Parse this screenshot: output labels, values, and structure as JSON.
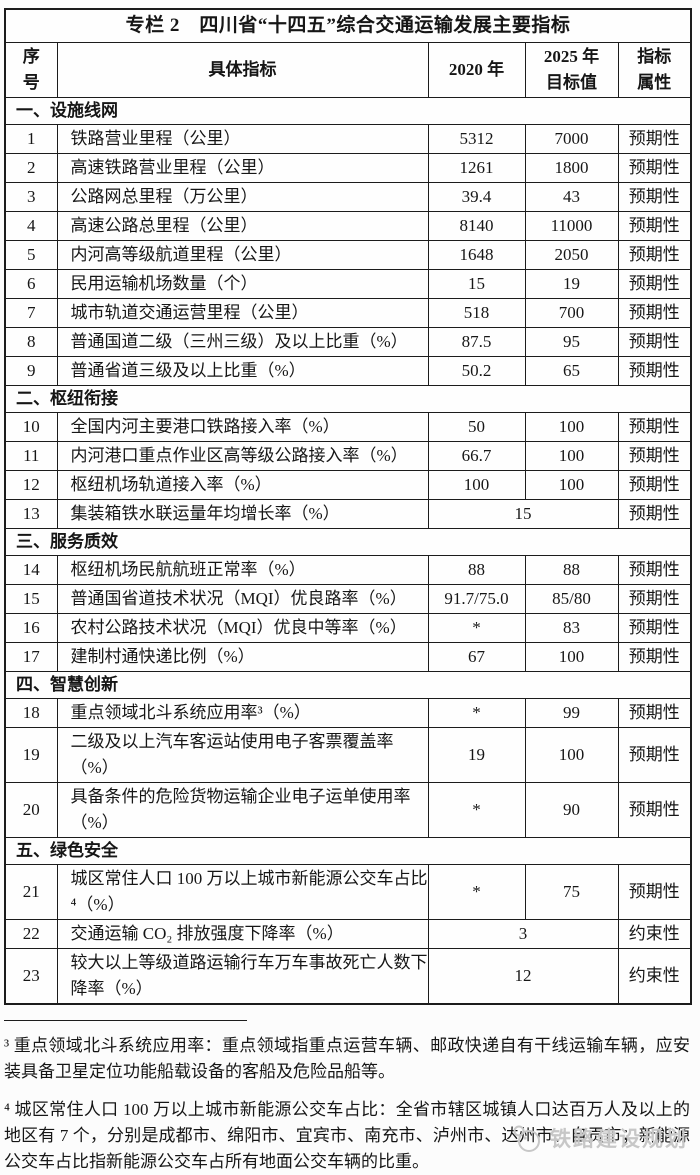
{
  "title": "专栏 2　四川省“十四五”综合交通运输发展主要指标",
  "table": {
    "headers": [
      "序\n号",
      "具体指标",
      "2020 年",
      "2025 年\n目标值",
      "指标\n属性"
    ],
    "rows": [
      {
        "type": "section",
        "label": "一、设施线网"
      },
      {
        "type": "data",
        "no": "1",
        "indicator": "铁路营业里程（公里）",
        "v2020": "5312",
        "v2025": "7000",
        "attr": "预期性"
      },
      {
        "type": "data",
        "no": "2",
        "indicator": "高速铁路营业里程（公里）",
        "v2020": "1261",
        "v2025": "1800",
        "attr": "预期性"
      },
      {
        "type": "data",
        "no": "3",
        "indicator": "公路网总里程（万公里）",
        "v2020": "39.4",
        "v2025": "43",
        "attr": "预期性"
      },
      {
        "type": "data",
        "no": "4",
        "indicator": "高速公路总里程（公里）",
        "v2020": "8140",
        "v2025": "11000",
        "attr": "预期性"
      },
      {
        "type": "data",
        "no": "5",
        "indicator": "内河高等级航道里程（公里）",
        "v2020": "1648",
        "v2025": "2050",
        "attr": "预期性"
      },
      {
        "type": "data",
        "no": "6",
        "indicator": "民用运输机场数量（个）",
        "v2020": "15",
        "v2025": "19",
        "attr": "预期性"
      },
      {
        "type": "data",
        "no": "7",
        "indicator": "城市轨道交通运营里程（公里）",
        "v2020": "518",
        "v2025": "700",
        "attr": "预期性"
      },
      {
        "type": "data",
        "no": "8",
        "indicator": "普通国道二级（三州三级）及以上比重（%）",
        "v2020": "87.5",
        "v2025": "95",
        "attr": "预期性"
      },
      {
        "type": "data",
        "no": "9",
        "indicator": "普通省道三级及以上比重（%）",
        "v2020": "50.2",
        "v2025": "65",
        "attr": "预期性"
      },
      {
        "type": "section",
        "label": "二、枢纽衔接"
      },
      {
        "type": "data",
        "no": "10",
        "indicator": "全国内河主要港口铁路接入率（%）",
        "v2020": "50",
        "v2025": "100",
        "attr": "预期性"
      },
      {
        "type": "data",
        "no": "11",
        "indicator": "内河港口重点作业区高等级公路接入率（%）",
        "v2020": "66.7",
        "v2025": "100",
        "attr": "预期性"
      },
      {
        "type": "data",
        "no": "12",
        "indicator": "枢纽机场轨道接入率（%）",
        "v2020": "100",
        "v2025": "100",
        "attr": "预期性"
      },
      {
        "type": "data",
        "no": "13",
        "indicator": "集装箱铁水联运量年均增长率（%）",
        "merged": "15",
        "attr": "预期性"
      },
      {
        "type": "section",
        "label": "三、服务质效"
      },
      {
        "type": "data",
        "no": "14",
        "indicator": "枢纽机场民航航班正常率（%）",
        "v2020": "88",
        "v2025": "88",
        "attr": "预期性"
      },
      {
        "type": "data",
        "no": "15",
        "indicator": "普通国省道技术状况（MQI）优良路率（%）",
        "v2020": "91.7/75.0",
        "v2025": "85/80",
        "attr": "预期性"
      },
      {
        "type": "data",
        "no": "16",
        "indicator": "农村公路技术状况（MQI）优良中等率（%）",
        "v2020": "*",
        "v2025": "83",
        "attr": "预期性"
      },
      {
        "type": "data",
        "no": "17",
        "indicator": "建制村通快递比例（%）",
        "v2020": "67",
        "v2025": "100",
        "attr": "预期性"
      },
      {
        "type": "section",
        "label": "四、智慧创新"
      },
      {
        "type": "data",
        "no": "18",
        "indicator": "重点领域北斗系统应用率³（%）",
        "v2020": "*",
        "v2025": "99",
        "attr": "预期性"
      },
      {
        "type": "data",
        "no": "19",
        "indicator": "二级及以上汽车客运站使用电子客票覆盖率（%）",
        "v2020": "19",
        "v2025": "100",
        "attr": "预期性"
      },
      {
        "type": "data",
        "no": "20",
        "indicator": "具备条件的危险货物运输企业电子运单使用率（%）",
        "v2020": "*",
        "v2025": "90",
        "attr": "预期性"
      },
      {
        "type": "section",
        "label": "五、绿色安全"
      },
      {
        "type": "data",
        "no": "21",
        "indicator": "城区常住人口 100 万以上城市新能源公交车占比⁴（%）",
        "v2020": "*",
        "v2025": "75",
        "attr": "预期性"
      },
      {
        "type": "data",
        "no": "22",
        "indicator": "交通运输 CO₂ 排放强度下降率（%）",
        "merged": "3",
        "attr": "约束性"
      },
      {
        "type": "data",
        "no": "23",
        "indicator": "较大以上等级道路运输行车万车事故死亡人数下降率（%）",
        "merged": "12",
        "attr": "约束性"
      }
    ]
  },
  "footnotes": [
    {
      "text": "³ 重点领域北斗系统应用率：重点领域指重点运营车辆、邮政快递自有干线运输车辆，应安装具备卫星定位功能船载设备的客船及危险品船等。"
    },
    {
      "text": "⁴ 城区常住人口 100 万以上城市新能源公交车占比：全省市辖区城镇人口达百万人及以上的地区有 7 个，分别是成都市、绵阳市、宜宾市、南充市、泸州市、达州市、自贡市；新能源公交车占比指新能源公交车占所有地面公交车辆的比重。"
    }
  ],
  "watermark": {
    "label": "铁路建设规划"
  }
}
